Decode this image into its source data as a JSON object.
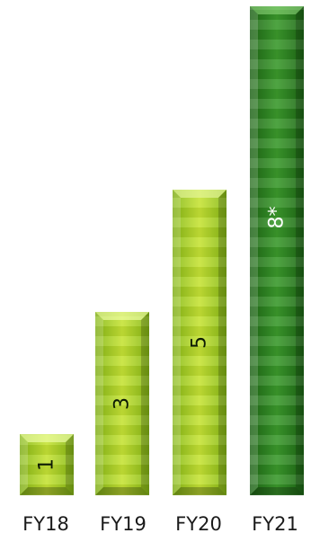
{
  "chart_data": {
    "type": "bar",
    "categories": [
      "FY18",
      "FY19",
      "FY20",
      "FY21"
    ],
    "values": [
      1,
      3,
      5,
      8
    ],
    "value_labels": [
      "1",
      "3",
      "5",
      "8*"
    ],
    "title": "",
    "xlabel": "",
    "ylabel": "",
    "ylim": [
      0,
      8
    ],
    "grid": false,
    "legend": "none",
    "colors": {
      "light": [
        "#a7d11f",
        "#8ec41c",
        "#cfe840"
      ],
      "dark": [
        "#2f8a22",
        "#1f6a17",
        "#4aa336"
      ]
    },
    "label_orientation": "rotated-90"
  }
}
